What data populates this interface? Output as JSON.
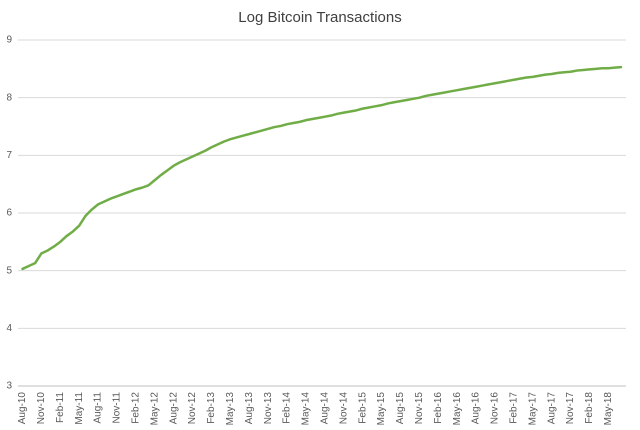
{
  "chart_data": {
    "type": "line",
    "title": "Log Bitcoin Transactions",
    "categories": [
      "Aug-10",
      null,
      null,
      "Nov-10",
      null,
      null,
      "Feb-11",
      null,
      null,
      "May-11",
      null,
      null,
      "Aug-11",
      null,
      null,
      "Nov-11",
      null,
      null,
      "Feb-12",
      null,
      null,
      "May-12",
      null,
      null,
      "Aug-12",
      null,
      null,
      "Nov-12",
      null,
      null,
      "Feb-13",
      null,
      null,
      "May-13",
      null,
      null,
      "Aug-13",
      null,
      null,
      "Nov-13",
      null,
      null,
      "Feb-14",
      null,
      null,
      "May-14",
      null,
      null,
      "Aug-14",
      null,
      null,
      "Nov-14",
      null,
      null,
      "Feb-15",
      null,
      null,
      "May-15",
      null,
      null,
      "Aug-15",
      null,
      null,
      "Nov-15",
      null,
      null,
      "Feb-16",
      null,
      null,
      "May-16",
      null,
      null,
      "Aug-16",
      null,
      null,
      "Nov-16",
      null,
      null,
      "Feb-17",
      null,
      null,
      "May-17",
      null,
      null,
      "Aug-17",
      null,
      null,
      "Nov-17",
      null,
      null,
      "Feb-18",
      null,
      null,
      "May-18",
      null,
      null
    ],
    "values": [
      5.03,
      5.08,
      5.13,
      5.3,
      5.35,
      5.42,
      5.5,
      5.6,
      5.68,
      5.78,
      5.95,
      6.06,
      6.15,
      6.2,
      6.25,
      6.29,
      6.33,
      6.37,
      6.41,
      6.44,
      6.48,
      6.57,
      6.66,
      6.74,
      6.82,
      6.88,
      6.93,
      6.98,
      7.03,
      7.08,
      7.14,
      7.19,
      7.24,
      7.28,
      7.31,
      7.34,
      7.37,
      7.4,
      7.43,
      7.46,
      7.49,
      7.51,
      7.54,
      7.56,
      7.58,
      7.61,
      7.63,
      7.65,
      7.67,
      7.69,
      7.72,
      7.74,
      7.76,
      7.78,
      7.81,
      7.83,
      7.85,
      7.87,
      7.9,
      7.92,
      7.94,
      7.96,
      7.98,
      8.0,
      8.03,
      8.05,
      8.07,
      8.09,
      8.11,
      8.13,
      8.15,
      8.17,
      8.19,
      8.21,
      8.23,
      8.25,
      8.27,
      8.29,
      8.31,
      8.33,
      8.35,
      8.36,
      8.38,
      8.4,
      8.41,
      8.43,
      8.44,
      8.45,
      8.47,
      8.48,
      8.49,
      8.5,
      8.51,
      8.51,
      8.52,
      8.53
    ],
    "color": "#70ad47",
    "ylim": [
      3,
      9
    ],
    "yticks": [
      3,
      4,
      5,
      6,
      7,
      8,
      9
    ],
    "grid": true
  }
}
